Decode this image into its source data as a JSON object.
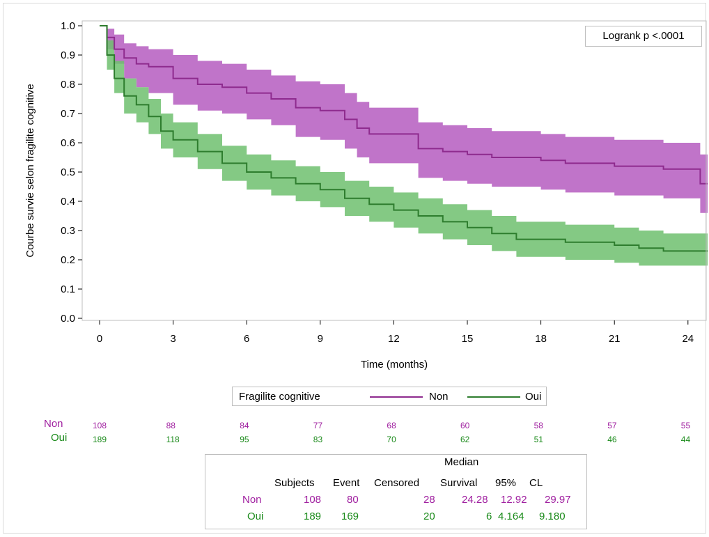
{
  "colors": {
    "non_line": "#8e2b8e",
    "non_band": "#b55cbf",
    "oui_line": "#2e7d2e",
    "oui_band": "#6fbf6f",
    "non_text": "#a020a0",
    "oui_text": "#1a8a1a"
  },
  "logrank": "Logrank p <.0001",
  "legend": {
    "title": "Fragilite cognitive",
    "non": "Non",
    "oui": "Oui"
  },
  "risk_table": {
    "groups": [
      {
        "label": "Non",
        "values": [
          "108",
          "88",
          "84",
          "77",
          "68",
          "60",
          "58",
          "57",
          "55"
        ]
      },
      {
        "label": "Oui",
        "values": [
          "189",
          "118",
          "95",
          "83",
          "70",
          "62",
          "51",
          "46",
          "44"
        ]
      }
    ]
  },
  "stats_table": {
    "header_top": "Median",
    "headers": [
      "Subjects",
      "Event",
      "Censored",
      "Survival",
      "95%",
      "CL"
    ],
    "rows": [
      {
        "label": "Non",
        "subjects": "108",
        "event": "80",
        "censored": "28",
        "median": "24.28",
        "cl_low": "12.92",
        "cl_high": "29.97"
      },
      {
        "label": "Oui",
        "subjects": "189",
        "event": "169",
        "censored": "20",
        "median": "6",
        "cl_low": "4.164",
        "cl_high": "9.180"
      }
    ]
  },
  "chart_data": {
    "type": "line",
    "title": "",
    "xlabel": "Time (months)",
    "ylabel": "Courbe survie selon fragilite cognitive",
    "xlim": [
      -0.8,
      24.8
    ],
    "ylim": [
      0,
      1.0
    ],
    "xticks": [
      "0",
      "3",
      "6",
      "9",
      "12",
      "15",
      "18",
      "21",
      "24"
    ],
    "yticks": [
      "0.0",
      "0.1",
      "0.2",
      "0.3",
      "0.4",
      "0.5",
      "0.6",
      "0.7",
      "0.8",
      "0.9",
      "1.0"
    ],
    "grid": false,
    "series": [
      {
        "name": "Non",
        "x": [
          0,
          0.3,
          0.6,
          1,
          1.5,
          2,
          3,
          4,
          5,
          6,
          7,
          8,
          9,
          10,
          10.5,
          11,
          12,
          13,
          14,
          15,
          16,
          17,
          18,
          19,
          20,
          21,
          22,
          23,
          24,
          24.5
        ],
        "y": [
          1.0,
          0.96,
          0.92,
          0.89,
          0.87,
          0.86,
          0.82,
          0.8,
          0.79,
          0.77,
          0.75,
          0.72,
          0.71,
          0.68,
          0.65,
          0.63,
          0.63,
          0.58,
          0.57,
          0.56,
          0.55,
          0.55,
          0.54,
          0.53,
          0.53,
          0.52,
          0.52,
          0.51,
          0.51,
          0.46
        ],
        "lower": [
          1.0,
          0.92,
          0.87,
          0.82,
          0.79,
          0.77,
          0.73,
          0.71,
          0.7,
          0.68,
          0.66,
          0.62,
          0.61,
          0.58,
          0.55,
          0.53,
          0.53,
          0.48,
          0.47,
          0.46,
          0.45,
          0.45,
          0.44,
          0.43,
          0.43,
          0.42,
          0.42,
          0.41,
          0.41,
          0.36
        ],
        "upper": [
          1.0,
          0.99,
          0.97,
          0.94,
          0.93,
          0.92,
          0.9,
          0.88,
          0.87,
          0.85,
          0.83,
          0.81,
          0.8,
          0.77,
          0.74,
          0.72,
          0.72,
          0.67,
          0.66,
          0.65,
          0.64,
          0.64,
          0.63,
          0.62,
          0.62,
          0.61,
          0.61,
          0.6,
          0.6,
          0.56
        ]
      },
      {
        "name": "Oui",
        "x": [
          0,
          0.3,
          0.6,
          1,
          1.5,
          2,
          2.5,
          3,
          4,
          5,
          6,
          7,
          8,
          9,
          10,
          11,
          12,
          13,
          14,
          15,
          16,
          17,
          18,
          19,
          20,
          21,
          22,
          23,
          24,
          24.8
        ],
        "y": [
          1.0,
          0.9,
          0.82,
          0.76,
          0.73,
          0.69,
          0.64,
          0.61,
          0.57,
          0.53,
          0.5,
          0.48,
          0.46,
          0.44,
          0.41,
          0.39,
          0.37,
          0.35,
          0.33,
          0.31,
          0.29,
          0.27,
          0.27,
          0.26,
          0.26,
          0.25,
          0.24,
          0.23,
          0.23,
          0.23
        ],
        "lower": [
          1.0,
          0.85,
          0.77,
          0.7,
          0.67,
          0.63,
          0.58,
          0.55,
          0.51,
          0.47,
          0.44,
          0.42,
          0.4,
          0.38,
          0.35,
          0.33,
          0.31,
          0.29,
          0.27,
          0.25,
          0.23,
          0.21,
          0.21,
          0.2,
          0.2,
          0.19,
          0.18,
          0.18,
          0.18,
          0.18
        ],
        "upper": [
          1.0,
          0.95,
          0.88,
          0.82,
          0.79,
          0.75,
          0.7,
          0.67,
          0.63,
          0.59,
          0.56,
          0.54,
          0.52,
          0.5,
          0.47,
          0.45,
          0.43,
          0.41,
          0.39,
          0.37,
          0.35,
          0.33,
          0.33,
          0.32,
          0.32,
          0.31,
          0.3,
          0.29,
          0.29,
          0.29
        ]
      }
    ]
  }
}
